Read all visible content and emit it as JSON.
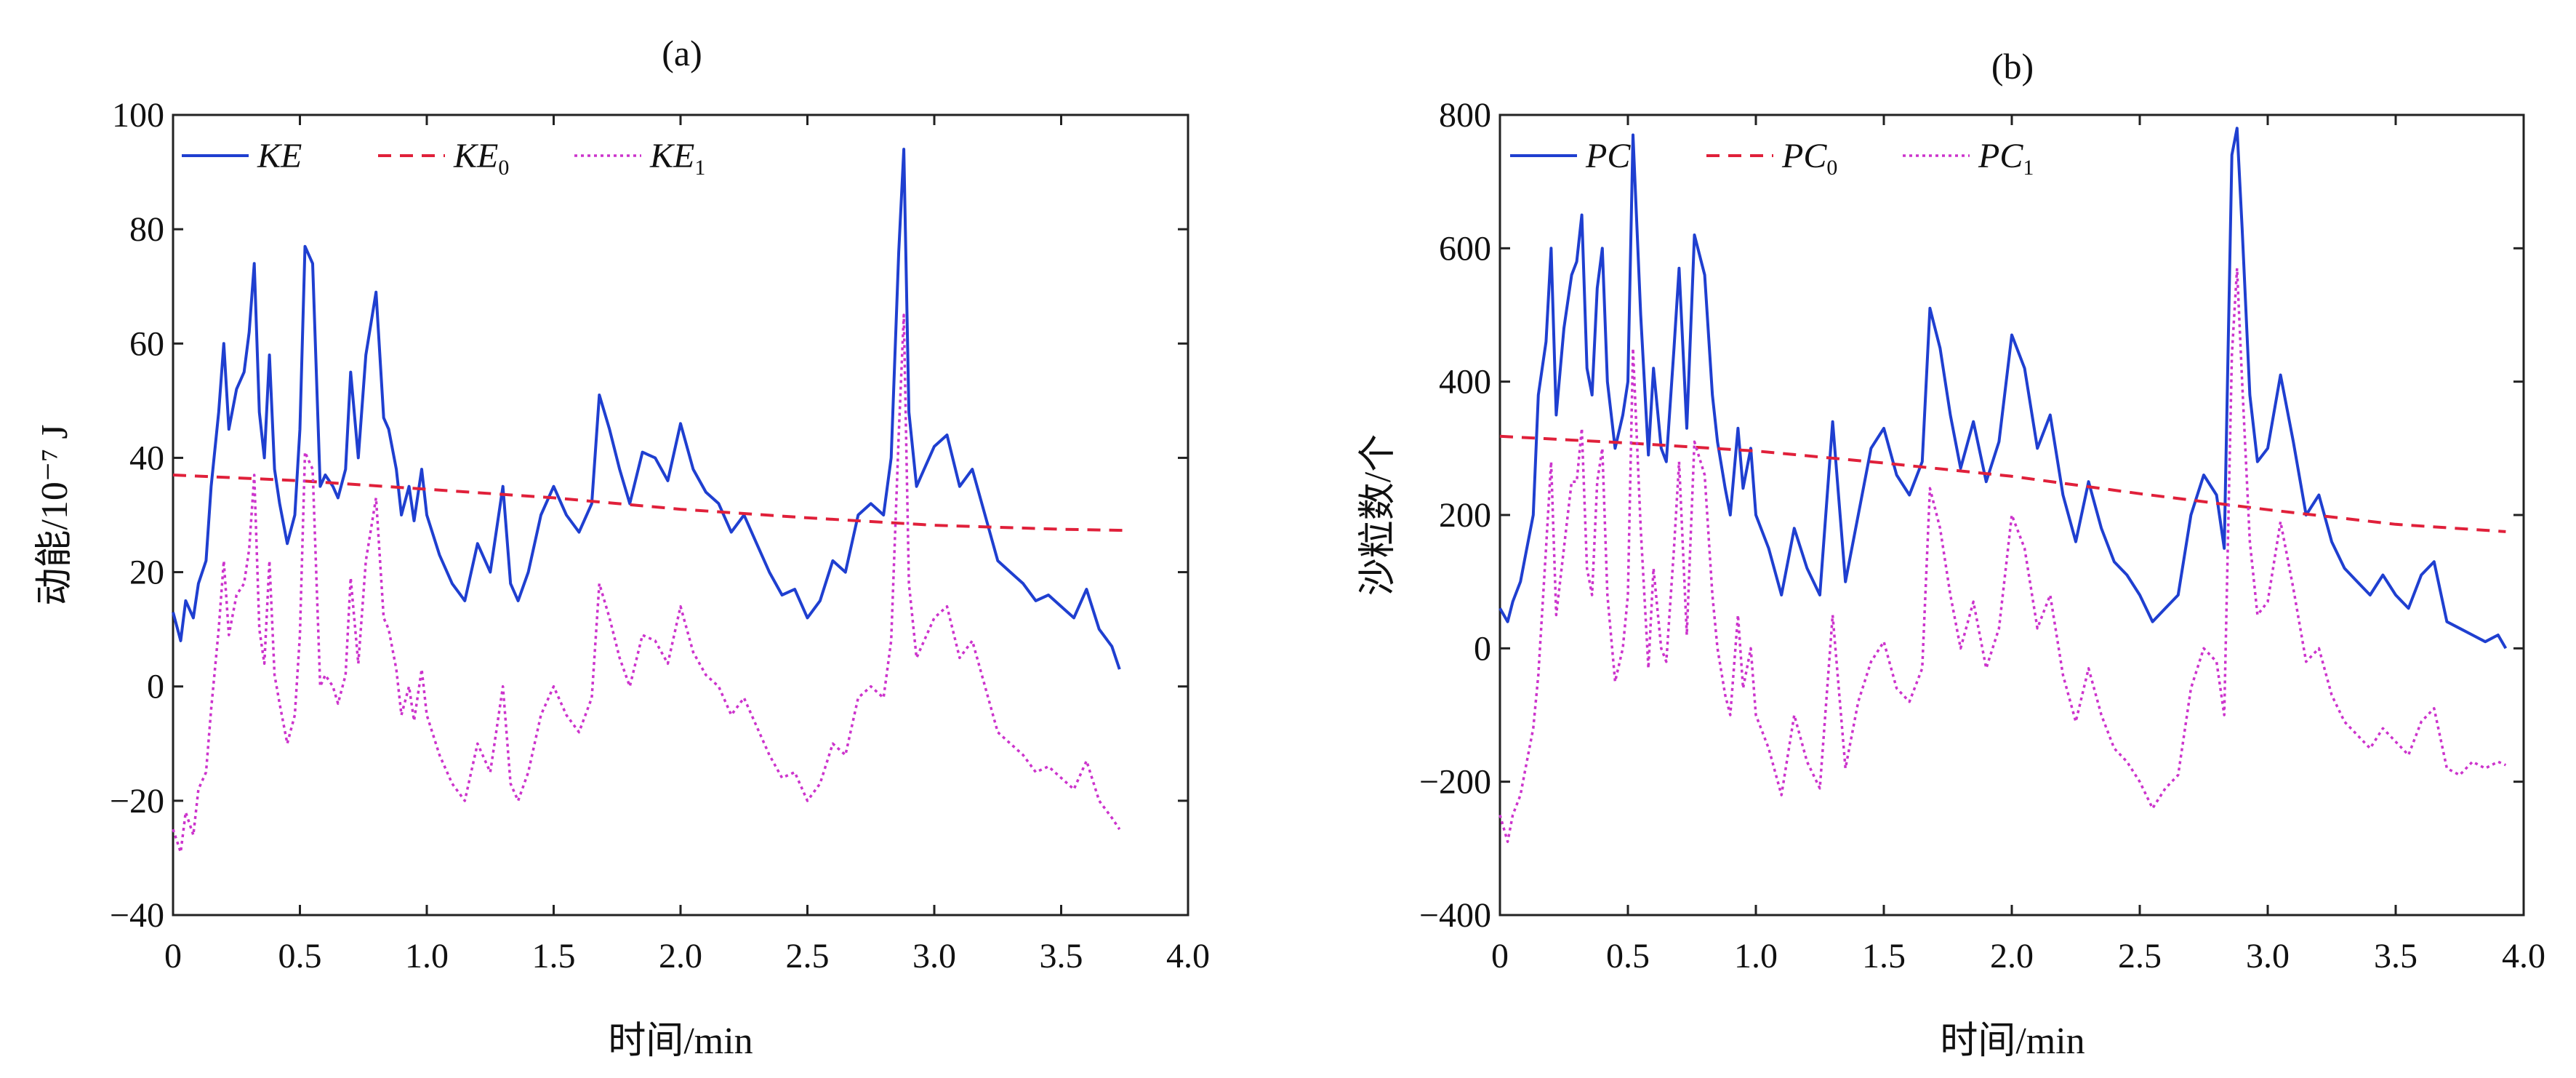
{
  "chart_data": [
    {
      "type": "line",
      "panel_label": "(a)",
      "xlabel": "时间/min",
      "ylabel": "动能/10⁻⁷ J",
      "xlim": [
        0,
        4.0
      ],
      "ylim": [
        -40,
        100
      ],
      "xticks": [
        "0",
        "0.5",
        "1.0",
        "1.5",
        "2.0",
        "2.5",
        "3.0",
        "3.5",
        "4.0"
      ],
      "yticks": [
        "−40",
        "−20",
        "0",
        "20",
        "40",
        "60",
        "80",
        "100"
      ],
      "legend_position": "top-left",
      "series": [
        {
          "name": "KE",
          "legend_main": "KE",
          "legend_sub": "",
          "color": "#1f3fd0",
          "style": "solid",
          "x": [
            0,
            0.03,
            0.05,
            0.08,
            0.1,
            0.13,
            0.15,
            0.18,
            0.2,
            0.22,
            0.25,
            0.28,
            0.3,
            0.32,
            0.34,
            0.36,
            0.38,
            0.4,
            0.42,
            0.45,
            0.48,
            0.5,
            0.52,
            0.55,
            0.58,
            0.6,
            0.63,
            0.65,
            0.68,
            0.7,
            0.73,
            0.76,
            0.8,
            0.83,
            0.85,
            0.88,
            0.9,
            0.93,
            0.95,
            0.98,
            1.0,
            1.05,
            1.1,
            1.15,
            1.2,
            1.25,
            1.3,
            1.33,
            1.36,
            1.4,
            1.45,
            1.5,
            1.55,
            1.6,
            1.65,
            1.68,
            1.72,
            1.76,
            1.8,
            1.85,
            1.9,
            1.95,
            2.0,
            2.05,
            2.1,
            2.15,
            2.2,
            2.25,
            2.3,
            2.35,
            2.4,
            2.45,
            2.5,
            2.55,
            2.6,
            2.65,
            2.7,
            2.75,
            2.8,
            2.83,
            2.86,
            2.88,
            2.9,
            2.93,
            2.96,
            3.0,
            3.05,
            3.1,
            3.15,
            3.2,
            3.25,
            3.3,
            3.35,
            3.4,
            3.45,
            3.5,
            3.55,
            3.6,
            3.65,
            3.7,
            3.73
          ],
          "y": [
            13,
            8,
            15,
            12,
            18,
            22,
            35,
            48,
            60,
            45,
            52,
            55,
            62,
            74,
            48,
            40,
            58,
            38,
            32,
            25,
            30,
            45,
            77,
            74,
            35,
            37,
            35,
            33,
            38,
            55,
            40,
            58,
            69,
            47,
            45,
            38,
            30,
            35,
            29,
            38,
            30,
            23,
            18,
            15,
            25,
            20,
            35,
            18,
            15,
            20,
            30,
            35,
            30,
            27,
            32,
            51,
            45,
            38,
            32,
            41,
            40,
            36,
            46,
            38,
            34,
            32,
            27,
            30,
            25,
            20,
            16,
            17,
            12,
            15,
            22,
            20,
            30,
            32,
            30,
            40,
            76,
            94,
            48,
            35,
            38,
            42,
            44,
            35,
            38,
            30,
            22,
            20,
            18,
            15,
            16,
            14,
            12,
            17,
            10,
            7,
            3
          ]
        },
        {
          "name": "KE0",
          "legend_main": "KE",
          "legend_sub": "0",
          "color": "#e0203a",
          "style": "dashed",
          "x": [
            0,
            0.5,
            1.0,
            1.5,
            2.0,
            2.5,
            3.0,
            3.5,
            3.75
          ],
          "y": [
            37,
            36,
            34.5,
            33,
            31,
            29.5,
            28.2,
            27.5,
            27.3
          ]
        },
        {
          "name": "KE1",
          "legend_main": "KE",
          "legend_sub": "1",
          "color": "#cc33cc",
          "style": "dotted",
          "x": [
            0,
            0.03,
            0.05,
            0.08,
            0.1,
            0.13,
            0.15,
            0.18,
            0.2,
            0.22,
            0.25,
            0.28,
            0.3,
            0.32,
            0.34,
            0.36,
            0.38,
            0.4,
            0.42,
            0.45,
            0.48,
            0.5,
            0.52,
            0.55,
            0.58,
            0.6,
            0.63,
            0.65,
            0.68,
            0.7,
            0.73,
            0.76,
            0.8,
            0.83,
            0.85,
            0.88,
            0.9,
            0.93,
            0.95,
            0.98,
            1.0,
            1.05,
            1.1,
            1.15,
            1.2,
            1.25,
            1.3,
            1.33,
            1.36,
            1.4,
            1.45,
            1.5,
            1.55,
            1.6,
            1.65,
            1.68,
            1.72,
            1.76,
            1.8,
            1.85,
            1.9,
            1.95,
            2.0,
            2.05,
            2.1,
            2.15,
            2.2,
            2.25,
            2.3,
            2.35,
            2.4,
            2.45,
            2.5,
            2.55,
            2.6,
            2.65,
            2.7,
            2.75,
            2.8,
            2.83,
            2.86,
            2.88,
            2.9,
            2.93,
            2.96,
            3.0,
            3.05,
            3.1,
            3.15,
            3.2,
            3.25,
            3.3,
            3.35,
            3.4,
            3.45,
            3.5,
            3.55,
            3.6,
            3.65,
            3.7,
            3.73
          ],
          "y": [
            -25,
            -29,
            -22,
            -26,
            -18,
            -15,
            -4,
            10,
            22,
            9,
            16,
            18,
            24,
            37,
            10,
            4,
            22,
            2,
            -3,
            -10,
            -5,
            9,
            41,
            38,
            0,
            2,
            0,
            -3,
            2,
            19,
            4,
            22,
            33,
            12,
            10,
            3,
            -5,
            0,
            -6,
            3,
            -5,
            -12,
            -17,
            -20,
            -10,
            -15,
            0,
            -17,
            -20,
            -15,
            -5,
            0,
            -5,
            -8,
            -2,
            18,
            12,
            5,
            0,
            9,
            8,
            4,
            14,
            6,
            2,
            0,
            -5,
            -2,
            -7,
            -12,
            -16,
            -15,
            -20,
            -17,
            -10,
            -12,
            -2,
            0,
            -2,
            8,
            44,
            65,
            18,
            5,
            8,
            12,
            14,
            5,
            8,
            0,
            -8,
            -10,
            -12,
            -15,
            -14,
            -16,
            -18,
            -13,
            -20,
            -23,
            -25
          ]
        }
      ]
    },
    {
      "type": "line",
      "panel_label": "(b)",
      "xlabel": "时间/min",
      "ylabel": "沙粒数/个",
      "xlim": [
        0,
        4.0
      ],
      "ylim": [
        -400,
        800
      ],
      "xticks": [
        "0",
        "0.5",
        "1.0",
        "1.5",
        "2.0",
        "2.5",
        "3.0",
        "3.5",
        "4.0"
      ],
      "yticks": [
        "−400",
        "−200",
        "0",
        "200",
        "400",
        "600",
        "800"
      ],
      "legend_position": "top-left",
      "series": [
        {
          "name": "PC",
          "legend_main": "PC",
          "legend_sub": "",
          "color": "#1f3fd0",
          "style": "solid",
          "x": [
            0,
            0.03,
            0.05,
            0.08,
            0.1,
            0.13,
            0.15,
            0.18,
            0.2,
            0.22,
            0.25,
            0.28,
            0.3,
            0.32,
            0.34,
            0.36,
            0.38,
            0.4,
            0.42,
            0.45,
            0.48,
            0.5,
            0.52,
            0.55,
            0.58,
            0.6,
            0.63,
            0.65,
            0.68,
            0.7,
            0.73,
            0.76,
            0.8,
            0.83,
            0.85,
            0.88,
            0.9,
            0.93,
            0.95,
            0.98,
            1.0,
            1.05,
            1.1,
            1.15,
            1.2,
            1.25,
            1.3,
            1.35,
            1.4,
            1.45,
            1.5,
            1.55,
            1.6,
            1.65,
            1.68,
            1.72,
            1.76,
            1.8,
            1.85,
            1.9,
            1.95,
            2.0,
            2.05,
            2.1,
            2.15,
            2.2,
            2.25,
            2.3,
            2.35,
            2.4,
            2.45,
            2.5,
            2.55,
            2.6,
            2.65,
            2.7,
            2.75,
            2.8,
            2.83,
            2.86,
            2.88,
            2.9,
            2.93,
            2.96,
            3.0,
            3.05,
            3.1,
            3.15,
            3.2,
            3.25,
            3.3,
            3.35,
            3.4,
            3.45,
            3.5,
            3.55,
            3.6,
            3.65,
            3.7,
            3.75,
            3.8,
            3.85,
            3.9,
            3.93
          ],
          "y": [
            60,
            40,
            70,
            100,
            140,
            200,
            380,
            460,
            600,
            350,
            480,
            560,
            580,
            650,
            420,
            380,
            540,
            600,
            400,
            300,
            350,
            400,
            770,
            500,
            290,
            420,
            300,
            280,
            450,
            570,
            330,
            620,
            560,
            380,
            310,
            240,
            200,
            330,
            240,
            300,
            200,
            150,
            80,
            180,
            120,
            80,
            340,
            100,
            200,
            300,
            330,
            260,
            230,
            280,
            510,
            450,
            350,
            270,
            340,
            250,
            310,
            470,
            420,
            300,
            350,
            230,
            160,
            250,
            180,
            130,
            110,
            80,
            40,
            60,
            80,
            200,
            260,
            230,
            150,
            740,
            780,
            630,
            380,
            280,
            300,
            410,
            310,
            200,
            230,
            160,
            120,
            100,
            80,
            110,
            80,
            60,
            110,
            130,
            40,
            30,
            20,
            10,
            20,
            0
          ]
        },
        {
          "name": "PC0",
          "legend_main": "PC",
          "legend_sub": "0",
          "color": "#e0203a",
          "style": "dashed",
          "x": [
            0,
            0.5,
            1.0,
            1.5,
            2.0,
            2.5,
            3.0,
            3.5,
            3.93
          ],
          "y": [
            318,
            308,
            296,
            278,
            258,
            232,
            208,
            186,
            175
          ]
        },
        {
          "name": "PC1",
          "legend_main": "PC",
          "legend_sub": "1",
          "color": "#cc33cc",
          "style": "dotted",
          "x": [
            0,
            0.03,
            0.05,
            0.08,
            0.1,
            0.13,
            0.15,
            0.18,
            0.2,
            0.22,
            0.25,
            0.28,
            0.3,
            0.32,
            0.34,
            0.36,
            0.38,
            0.4,
            0.42,
            0.45,
            0.48,
            0.5,
            0.52,
            0.55,
            0.58,
            0.6,
            0.63,
            0.65,
            0.68,
            0.7,
            0.73,
            0.76,
            0.8,
            0.83,
            0.85,
            0.88,
            0.9,
            0.93,
            0.95,
            0.98,
            1.0,
            1.05,
            1.1,
            1.15,
            1.2,
            1.25,
            1.3,
            1.35,
            1.4,
            1.45,
            1.5,
            1.55,
            1.6,
            1.65,
            1.68,
            1.72,
            1.76,
            1.8,
            1.85,
            1.9,
            1.95,
            2.0,
            2.05,
            2.1,
            2.15,
            2.2,
            2.25,
            2.3,
            2.35,
            2.4,
            2.45,
            2.5,
            2.55,
            2.6,
            2.65,
            2.7,
            2.75,
            2.8,
            2.83,
            2.86,
            2.88,
            2.9,
            2.93,
            2.96,
            3.0,
            3.05,
            3.1,
            3.15,
            3.2,
            3.25,
            3.3,
            3.35,
            3.4,
            3.45,
            3.5,
            3.55,
            3.6,
            3.65,
            3.7,
            3.75,
            3.8,
            3.85,
            3.9,
            3.93
          ],
          "y": [
            -250,
            -290,
            -250,
            -220,
            -180,
            -120,
            -40,
            150,
            280,
            50,
            150,
            250,
            250,
            330,
            120,
            80,
            250,
            300,
            80,
            -50,
            0,
            80,
            450,
            180,
            -30,
            120,
            0,
            -20,
            150,
            280,
            20,
            310,
            260,
            80,
            0,
            -70,
            -100,
            50,
            -60,
            0,
            -100,
            -150,
            -220,
            -100,
            -170,
            -210,
            50,
            -180,
            -80,
            -20,
            10,
            -60,
            -80,
            -30,
            240,
            180,
            80,
            0,
            70,
            -30,
            30,
            200,
            150,
            30,
            80,
            -40,
            -110,
            -30,
            -100,
            -150,
            -170,
            -200,
            -240,
            -210,
            -190,
            -60,
            0,
            -20,
            -100,
            440,
            570,
            400,
            160,
            50,
            70,
            190,
            90,
            -20,
            0,
            -70,
            -110,
            -130,
            -150,
            -120,
            -140,
            -160,
            -110,
            -90,
            -180,
            -190,
            -170,
            -180,
            -170,
            -175
          ]
        }
      ]
    }
  ]
}
